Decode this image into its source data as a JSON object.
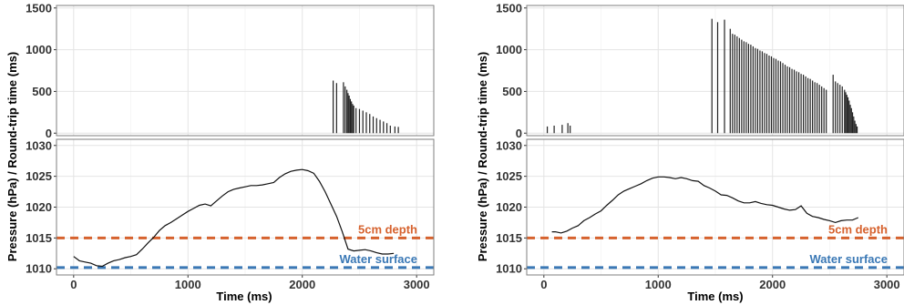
{
  "chart_data": [
    {
      "type": "bar",
      "panel": "left-top",
      "ylabel": "Pressure (hPa) / Round-trip time (ms)",
      "xlim": [
        -150,
        3150
      ],
      "ylim": [
        -30,
        1530
      ],
      "yticks": [
        0,
        500,
        1000,
        1500
      ],
      "grid": true,
      "bars": {
        "x": [
          2270,
          2300,
          2360,
          2375,
          2390,
          2400,
          2410,
          2420,
          2430,
          2440,
          2450,
          2470,
          2500,
          2530,
          2560,
          2590,
          2620,
          2650,
          2680,
          2710,
          2740,
          2770,
          2810,
          2840
        ],
        "values": [
          630,
          600,
          610,
          560,
          520,
          480,
          450,
          410,
          380,
          350,
          330,
          300,
          290,
          270,
          250,
          230,
          200,
          180,
          160,
          140,
          120,
          90,
          80,
          75
        ]
      }
    },
    {
      "type": "line",
      "panel": "left-bottom",
      "xlabel": "Time (ms)",
      "xlim": [
        -150,
        3150
      ],
      "ylim": [
        1009,
        1031
      ],
      "xticks": [
        0,
        1000,
        2000,
        3000
      ],
      "yticks": [
        1010,
        1015,
        1020,
        1025,
        1030
      ],
      "grid": true,
      "series": [
        {
          "x": [
            0,
            50,
            100,
            150,
            200,
            250,
            300,
            350,
            400,
            450,
            500,
            550,
            600,
            650,
            700,
            750,
            800,
            850,
            900,
            950,
            1000,
            1050,
            1100,
            1150,
            1200,
            1250,
            1300,
            1350,
            1400,
            1450,
            1500,
            1550,
            1600,
            1650,
            1700,
            1750,
            1800,
            1850,
            1900,
            1950,
            2000,
            2050,
            2100,
            2150,
            2200,
            2250,
            2300,
            2350,
            2400,
            2450,
            2500,
            2550,
            2600,
            2650,
            2700,
            2750,
            2800
          ],
          "values": [
            1012.0,
            1011.3,
            1011.1,
            1010.9,
            1010.5,
            1010.4,
            1010.9,
            1011.3,
            1011.5,
            1011.8,
            1012.0,
            1012.3,
            1013.2,
            1014.2,
            1015.1,
            1016.2,
            1017.0,
            1017.5,
            1018.1,
            1018.7,
            1019.3,
            1019.8,
            1020.3,
            1020.5,
            1020.2,
            1021.0,
            1021.8,
            1022.5,
            1022.9,
            1023.1,
            1023.3,
            1023.5,
            1023.5,
            1023.6,
            1023.8,
            1024.0,
            1024.8,
            1025.4,
            1025.8,
            1026.0,
            1026.1,
            1025.9,
            1025.5,
            1024.2,
            1022.5,
            1020.5,
            1018.5,
            1016.0,
            1013.2,
            1012.9,
            1013.0,
            1013.1,
            1012.9,
            1012.6,
            1012.4,
            1012.4,
            1012.5
          ]
        }
      ],
      "reference_lines": [
        {
          "label": "5cm depth",
          "y": 1015.0,
          "color": "#d6622e",
          "style": "dashed"
        },
        {
          "label": "Water surface",
          "y": 1010.2,
          "color": "#3a78b5",
          "style": "dashed"
        }
      ]
    },
    {
      "type": "bar",
      "panel": "right-top",
      "ylabel": "Pressure (hPa) / Round-trip time (ms)",
      "xlim": [
        -150,
        3150
      ],
      "ylim": [
        -30,
        1530
      ],
      "yticks": [
        0,
        500,
        1000,
        1500
      ],
      "grid": true,
      "bars": {
        "x": [
          30,
          90,
          160,
          210,
          230,
          1470,
          1520,
          1580,
          1630,
          1650,
          1670,
          1690,
          1710,
          1730,
          1750,
          1770,
          1790,
          1810,
          1830,
          1850,
          1870,
          1890,
          1910,
          1930,
          1950,
          1970,
          1990,
          2010,
          2030,
          2050,
          2070,
          2090,
          2110,
          2130,
          2150,
          2170,
          2190,
          2210,
          2230,
          2250,
          2270,
          2290,
          2310,
          2330,
          2350,
          2370,
          2390,
          2410,
          2430,
          2450,
          2470,
          2530,
          2550,
          2570,
          2590,
          2610,
          2630,
          2640,
          2650,
          2660,
          2670,
          2680,
          2690,
          2700,
          2710,
          2720,
          2730,
          2740
        ],
        "values": [
          80,
          90,
          100,
          120,
          90,
          1370,
          1330,
          1360,
          1250,
          1190,
          1180,
          1160,
          1140,
          1120,
          1100,
          1090,
          1070,
          1060,
          1040,
          1020,
          1010,
          990,
          980,
          960,
          950,
          930,
          920,
          900,
          890,
          870,
          860,
          840,
          820,
          800,
          790,
          770,
          760,
          740,
          730,
          710,
          700,
          680,
          660,
          650,
          630,
          610,
          600,
          580,
          560,
          540,
          520,
          700,
          620,
          600,
          580,
          560,
          520,
          490,
          460,
          430,
          390,
          340,
          300,
          250,
          200,
          150,
          110,
          80
        ]
      }
    },
    {
      "type": "line",
      "panel": "right-bottom",
      "xlabel": "Time (ms)",
      "xlim": [
        -150,
        3150
      ],
      "ylim": [
        1009,
        1031
      ],
      "xticks": [
        0,
        1000,
        2000,
        3000
      ],
      "yticks": [
        1010,
        1015,
        1020,
        1025,
        1030
      ],
      "grid": true,
      "series": [
        {
          "x": [
            70,
            100,
            150,
            200,
            250,
            300,
            350,
            400,
            450,
            500,
            550,
            600,
            650,
            700,
            750,
            800,
            850,
            900,
            950,
            1000,
            1050,
            1100,
            1150,
            1200,
            1250,
            1300,
            1350,
            1400,
            1450,
            1500,
            1550,
            1600,
            1650,
            1700,
            1750,
            1800,
            1850,
            1900,
            1950,
            2000,
            2050,
            2100,
            2150,
            2200,
            2250,
            2300,
            2350,
            2400,
            2450,
            2500,
            2550,
            2600,
            2650,
            2700,
            2750
          ],
          "values": [
            1016.0,
            1016.0,
            1015.8,
            1016.1,
            1016.6,
            1017.0,
            1017.8,
            1018.3,
            1018.9,
            1019.4,
            1020.3,
            1021.1,
            1022.0,
            1022.6,
            1023.0,
            1023.4,
            1023.8,
            1024.3,
            1024.7,
            1024.9,
            1024.9,
            1024.8,
            1024.6,
            1024.8,
            1024.6,
            1024.3,
            1024.2,
            1023.5,
            1023.1,
            1022.6,
            1022.0,
            1021.9,
            1021.5,
            1021.0,
            1020.7,
            1020.7,
            1020.9,
            1020.6,
            1020.4,
            1020.3,
            1020.0,
            1019.7,
            1019.5,
            1019.6,
            1020.2,
            1019.0,
            1018.5,
            1018.3,
            1018.0,
            1017.8,
            1017.5,
            1017.8,
            1017.9,
            1017.9,
            1018.3
          ]
        }
      ],
      "reference_lines": [
        {
          "label": "5cm depth",
          "y": 1015.0,
          "color": "#d6622e",
          "style": "dashed"
        },
        {
          "label": "Water surface",
          "y": 1010.2,
          "color": "#3a78b5",
          "style": "dashed"
        }
      ]
    }
  ]
}
